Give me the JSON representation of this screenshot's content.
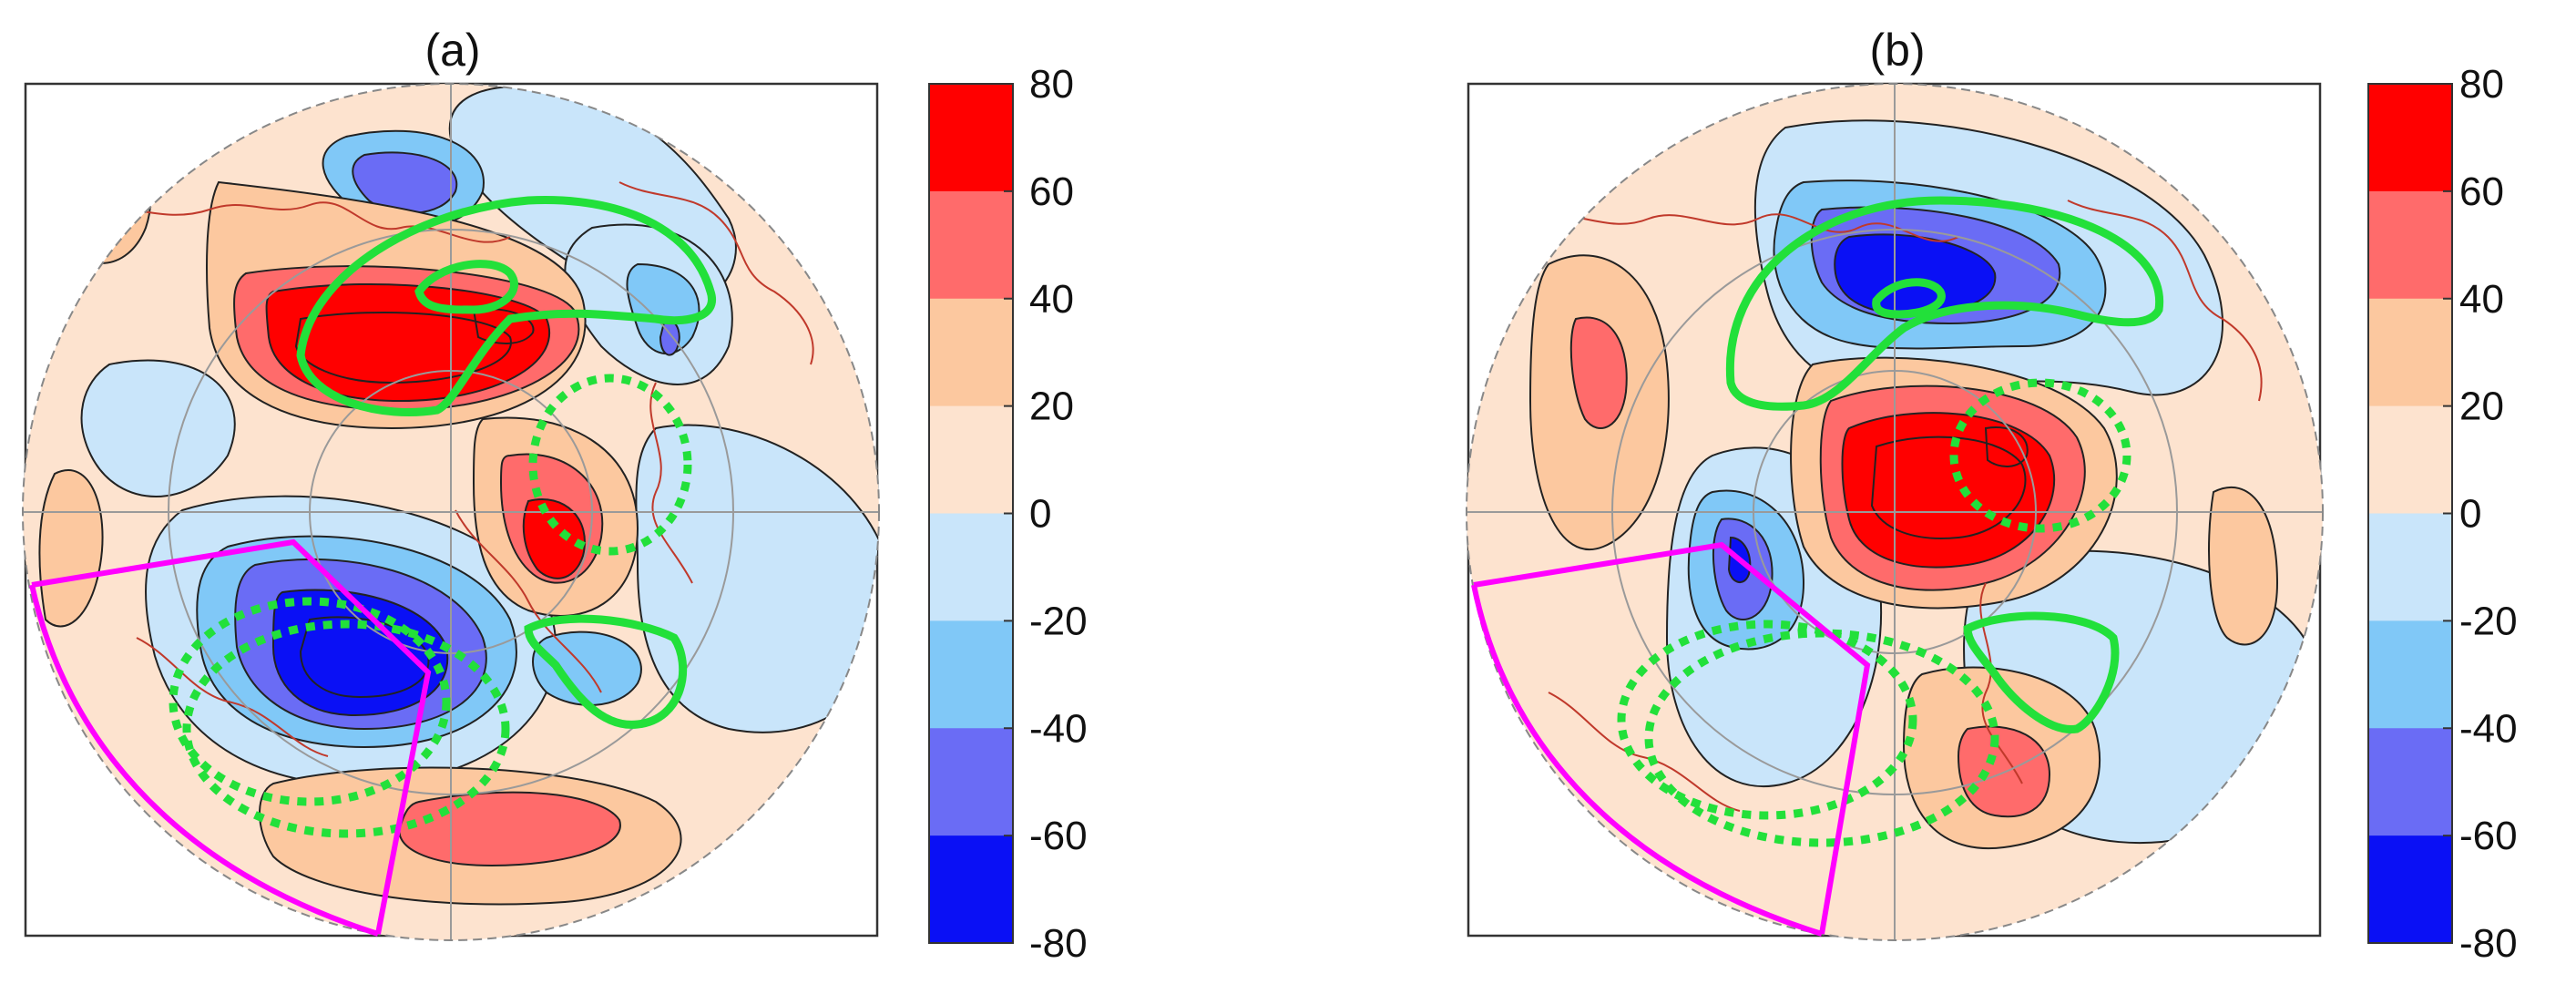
{
  "chart_data": [
    {
      "type": "heatmap",
      "title": "(a)",
      "colorbar": {
        "levels": [
          80,
          60,
          40,
          20,
          0,
          -20,
          -40,
          -60,
          -80
        ],
        "colors": [
          "#ff0000",
          "#ff6b6b",
          "#fcc89f",
          "#fde3cf",
          "#c9e5fa",
          "#80c8f7",
          "#6a6cf5",
          "#0a10f5"
        ]
      },
      "highlights": {
        "green_solid": 3,
        "green_dotted": 3,
        "magenta_sector": 1
      }
    },
    {
      "type": "heatmap",
      "title": "(b)",
      "colorbar": {
        "levels": [
          80,
          60,
          40,
          20,
          0,
          -20,
          -40,
          -60,
          -80
        ],
        "colors": [
          "#ff0000",
          "#ff6b6b",
          "#fcc89f",
          "#fde3cf",
          "#c9e5fa",
          "#80c8f7",
          "#6a6cf5",
          "#0a10f5"
        ]
      },
      "highlights": {
        "green_solid": 3,
        "green_dotted": 3,
        "magenta_sector": 1
      }
    }
  ]
}
